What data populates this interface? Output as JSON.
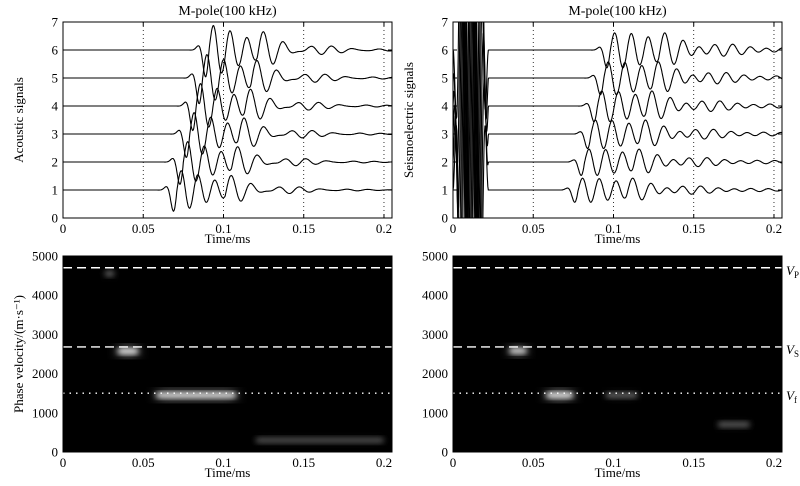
{
  "figure": {
    "panels": [
      {
        "title": "M-pole(100 kHz)",
        "xlabel": "Time/ms",
        "ylabel": "Acoustic signals"
      },
      {
        "title": "M-pole(100 kHz)",
        "xlabel": "Time/ms",
        "ylabel": "Seismoelectric signals"
      },
      {
        "title": "",
        "xlabel": "Time/ms",
        "ylabel": "Phase velocity/(m·s⁻¹)"
      },
      {
        "title": "",
        "xlabel": "Time/ms",
        "ylabel": ""
      }
    ],
    "velocity_labels": [
      {
        "main": "V",
        "sub": "P"
      },
      {
        "main": "V",
        "sub": "S"
      },
      {
        "main": "V",
        "sub": "f"
      }
    ]
  },
  "chart_data": [
    {
      "type": "line",
      "title": "M-pole(100 kHz)",
      "xlabel": "Time/ms",
      "ylabel": "Acoustic signals",
      "xlim": [
        0,
        0.205
      ],
      "ylim": [
        0,
        7
      ],
      "xticks": [
        0,
        0.05,
        0.1,
        0.15,
        0.2
      ],
      "yticks": [
        0,
        1,
        2,
        3,
        4,
        5,
        6,
        7
      ],
      "vertical_dotted_lines": [
        0.05,
        0.1,
        0.15,
        0.2
      ],
      "series": [
        {
          "baseline": 1,
          "arrival": 0.071,
          "amplitude": 0.95,
          "freq_khz": 95,
          "decay_ms": 0.024
        },
        {
          "baseline": 2,
          "arrival": 0.075,
          "amplitude": 1.0,
          "freq_khz": 95,
          "decay_ms": 0.024
        },
        {
          "baseline": 3,
          "arrival": 0.079,
          "amplitude": 1.05,
          "freq_khz": 95,
          "decay_ms": 0.024
        },
        {
          "baseline": 4,
          "arrival": 0.083,
          "amplitude": 1.1,
          "freq_khz": 95,
          "decay_ms": 0.024
        },
        {
          "baseline": 5,
          "arrival": 0.087,
          "amplitude": 1.15,
          "freq_khz": 95,
          "decay_ms": 0.024
        },
        {
          "baseline": 6,
          "arrival": 0.091,
          "amplitude": 1.2,
          "freq_khz": 95,
          "decay_ms": 0.024
        }
      ]
    },
    {
      "type": "line",
      "title": "M-pole(100 kHz)",
      "xlabel": "Time/ms",
      "ylabel": "Seismoelectric signals",
      "xlim": [
        0,
        0.205
      ],
      "ylim": [
        0,
        7
      ],
      "xticks": [
        0,
        0.05,
        0.1,
        0.15,
        0.2
      ],
      "yticks": [
        0,
        1,
        2,
        3,
        4,
        5,
        6,
        7
      ],
      "vertical_dotted_lines": [
        0.05,
        0.1,
        0.15,
        0.2
      ],
      "series": [
        {
          "baseline": 1,
          "arrival": 0.078,
          "amplitude": 0.55,
          "freq_khz": 95,
          "decay_ms": 0.045
        },
        {
          "baseline": 2,
          "arrival": 0.082,
          "amplitude": 0.6,
          "freq_khz": 95,
          "decay_ms": 0.045
        },
        {
          "baseline": 3,
          "arrival": 0.086,
          "amplitude": 0.65,
          "freq_khz": 95,
          "decay_ms": 0.045
        },
        {
          "baseline": 4,
          "arrival": 0.09,
          "amplitude": 0.7,
          "freq_khz": 95,
          "decay_ms": 0.045
        },
        {
          "baseline": 5,
          "arrival": 0.094,
          "amplitude": 0.75,
          "freq_khz": 95,
          "decay_ms": 0.045
        },
        {
          "baseline": 6,
          "arrival": 0.098,
          "amplitude": 0.8,
          "freq_khz": 95,
          "decay_ms": 0.045
        }
      ],
      "early_transient": {
        "t_start": 0.0,
        "t_end": 0.022,
        "note": "large coseismic oscillation clipped at axis"
      }
    },
    {
      "type": "heatmap",
      "xlabel": "Time/ms",
      "ylabel": "Phase velocity/(m·s⁻¹)",
      "xlim": [
        0,
        0.205
      ],
      "ylim": [
        0,
        5000
      ],
      "xticks": [
        0,
        0.05,
        0.1,
        0.15,
        0.2
      ],
      "yticks": [
        0,
        1000,
        2000,
        3000,
        4000,
        5000
      ],
      "background": "#000000",
      "reference_lines": [
        {
          "velocity": 4700,
          "style": "dashed"
        },
        {
          "velocity": 2680,
          "style": "dashed"
        },
        {
          "velocity": 1500,
          "style": "dotted"
        }
      ],
      "bright_spots": [
        {
          "t0": 0.034,
          "t1": 0.047,
          "v": 2570,
          "intensity": 1.0
        },
        {
          "t0": 0.058,
          "t1": 0.108,
          "v": 1450,
          "intensity": 0.95
        },
        {
          "t0": 0.026,
          "t1": 0.032,
          "v": 4550,
          "intensity": 0.25
        },
        {
          "t0": 0.12,
          "t1": 0.2,
          "v": 300,
          "intensity": 0.15
        }
      ]
    },
    {
      "type": "heatmap",
      "xlabel": "Time/ms",
      "ylabel": "",
      "xlim": [
        0,
        0.205
      ],
      "ylim": [
        0,
        5000
      ],
      "xticks": [
        0,
        0.05,
        0.1,
        0.15,
        0.2
      ],
      "yticks": [
        0,
        1000,
        2000,
        3000,
        4000,
        5000
      ],
      "background": "#000000",
      "reference_lines": [
        {
          "velocity": 4700,
          "style": "dashed",
          "label": "P"
        },
        {
          "velocity": 2680,
          "style": "dashed",
          "label": "S"
        },
        {
          "velocity": 1500,
          "style": "dotted",
          "label": "f"
        }
      ],
      "bright_spots": [
        {
          "t0": 0.035,
          "t1": 0.046,
          "v": 2580,
          "intensity": 0.9
        },
        {
          "t0": 0.058,
          "t1": 0.075,
          "v": 1450,
          "intensity": 1.0
        },
        {
          "t0": 0.095,
          "t1": 0.115,
          "v": 1450,
          "intensity": 0.25
        },
        {
          "t0": 0.165,
          "t1": 0.185,
          "v": 700,
          "intensity": 0.2
        }
      ]
    }
  ]
}
